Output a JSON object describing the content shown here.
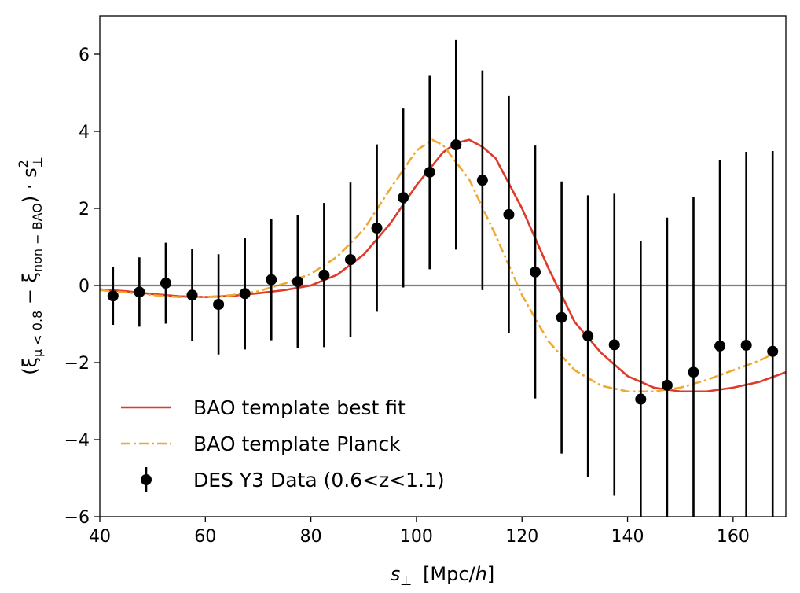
{
  "chart_data": {
    "type": "line",
    "xlabel_main": "s",
    "xlabel_sub": "⊥",
    "xlabel_unit_pre": "[Mpc/",
    "xlabel_unit_italic": "h",
    "xlabel_unit_post": "]",
    "ylabel_lead": "(ξ",
    "ylabel_sub1": "μ < 0.8",
    "ylabel_mid": " − ξ",
    "ylabel_sub2": "non − BAO",
    "ylabel_tail": ") · s",
    "ylabel_sup": "2",
    "ylabel_sub3": "⊥",
    "xlim": [
      40,
      170
    ],
    "ylim": [
      -6,
      7
    ],
    "xticks": [
      40,
      60,
      80,
      100,
      120,
      140,
      160
    ],
    "xtick_labels": [
      "40",
      "60",
      "80",
      "100",
      "120",
      "140",
      "160"
    ],
    "yticks": [
      -6,
      -4,
      -2,
      0,
      2,
      4,
      6
    ],
    "ytick_labels": [
      "−6",
      "−4",
      "−2",
      "0",
      "2",
      "4",
      "6"
    ],
    "zero_line": true,
    "legend_position": "lower-left",
    "series": [
      {
        "name": "BAO template best fit",
        "kind": "line",
        "style": "solid",
        "color": "#e0392a",
        "x": [
          40,
          45,
          50,
          55,
          60,
          65,
          70,
          75,
          80,
          85,
          90,
          95,
          100,
          105,
          107.5,
          110,
          112.5,
          115,
          120,
          125,
          130,
          135,
          140,
          145,
          150,
          155,
          160,
          165,
          170
        ],
        "y": [
          -0.1,
          -0.15,
          -0.22,
          -0.28,
          -0.3,
          -0.27,
          -0.2,
          -0.12,
          0.0,
          0.28,
          0.8,
          1.6,
          2.6,
          3.45,
          3.7,
          3.78,
          3.6,
          3.3,
          2.0,
          0.45,
          -0.95,
          -1.75,
          -2.35,
          -2.65,
          -2.75,
          -2.75,
          -2.65,
          -2.5,
          -2.25
        ]
      },
      {
        "name": "BAO template Planck",
        "kind": "line",
        "style": "dashdot",
        "color": "#f0a830",
        "x": [
          40,
          45,
          50,
          55,
          60,
          65,
          70,
          75,
          80,
          85,
          90,
          95,
          100,
          103,
          105,
          110,
          115,
          120,
          125,
          130,
          135,
          140,
          145,
          150,
          155,
          160,
          165,
          168
        ],
        "y": [
          -0.12,
          -0.18,
          -0.25,
          -0.3,
          -0.3,
          -0.25,
          -0.15,
          0.05,
          0.3,
          0.75,
          1.45,
          2.5,
          3.5,
          3.78,
          3.65,
          2.75,
          1.3,
          -0.25,
          -1.45,
          -2.2,
          -2.6,
          -2.75,
          -2.75,
          -2.65,
          -2.45,
          -2.2,
          -1.95,
          -1.75
        ]
      },
      {
        "name": "DES Y3 Data (0.6<z<1.1)",
        "kind": "errorbar",
        "color": "#000000",
        "x": [
          42.5,
          47.5,
          52.5,
          57.5,
          62.5,
          67.5,
          72.5,
          77.5,
          82.5,
          87.5,
          92.5,
          97.5,
          102.5,
          107.5,
          112.5,
          117.5,
          122.5,
          127.5,
          132.5,
          137.5,
          142.5,
          147.5,
          152.5,
          157.5,
          162.5,
          167.5
        ],
        "y": [
          -0.27,
          -0.17,
          0.06,
          -0.25,
          -0.49,
          -0.21,
          0.15,
          0.1,
          0.27,
          0.67,
          1.49,
          2.28,
          2.94,
          3.65,
          2.73,
          1.84,
          0.35,
          -0.83,
          -1.31,
          -1.54,
          -2.95,
          -2.59,
          -2.25,
          -1.57,
          -1.55,
          -1.71
        ],
        "err": [
          0.75,
          0.9,
          1.05,
          1.2,
          1.3,
          1.45,
          1.57,
          1.73,
          1.87,
          2.0,
          2.17,
          2.33,
          2.52,
          2.72,
          2.85,
          3.08,
          3.28,
          3.53,
          3.65,
          3.92,
          4.1,
          4.35,
          4.55,
          4.83,
          5.02,
          5.2
        ]
      }
    ]
  }
}
